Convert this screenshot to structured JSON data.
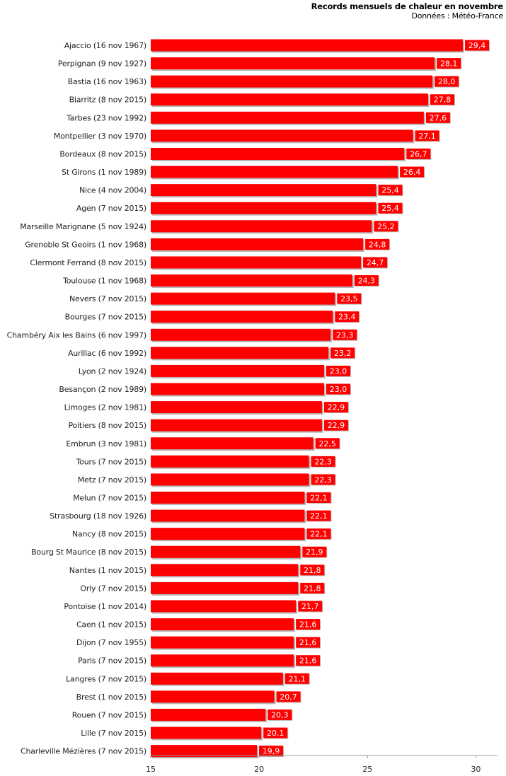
{
  "chart_data": {
    "type": "bar",
    "orientation": "horizontal",
    "title": "Records mensuels de chaleur en novembre",
    "subtitle": "Données : Météo-France",
    "xlabel": "",
    "ylabel": "",
    "xlim": [
      15,
      31
    ],
    "ticks": [
      15,
      20,
      25,
      30
    ],
    "tick_labels": [
      "15",
      "20",
      "25",
      "30"
    ],
    "bar_color": "#ff0000",
    "label_bg_color": "#ff0000",
    "grid": false,
    "categories": [
      "Ajaccio (16 nov 1967)",
      "Perpignan (9 nov 1927)",
      "Bastia (16 nov 1963)",
      "Biarritz (8 nov 2015)",
      "Tarbes (23 nov 1992)",
      "Montpellier (3 nov 1970)",
      "Bordeaux (8 nov 2015)",
      "St Girons (1 nov 1989)",
      "Nice (4 nov 2004)",
      "Agen (7 nov 2015)",
      "Marseille Marignane (5 nov 1924)",
      "Grenoble St Geoirs (1 nov 1968)",
      "Clermont Ferrand (8 nov 2015)",
      "Toulouse (1 nov 1968)",
      "Nevers (7 nov 2015)",
      "Bourges (7 nov 2015)",
      "Chambéry Aix les Bains (6 nov 1997)",
      "Aurillac (6 nov 1992)",
      "Lyon (2 nov 1924)",
      "Besançon (2 nov 1989)",
      "Limoges (2 nov 1981)",
      "Poitiers (8 nov 2015)",
      "Embrun (3 nov 1981)",
      "Tours (7 nov 2015)",
      "Metz (7 nov 2015)",
      "Melun (7 nov 2015)",
      "Strasbourg (18 nov 1926)",
      "Nancy (8 nov 2015)",
      "Bourg St Maurice (8 nov 2015)",
      "Nantes (1 nov 2015)",
      "Orly (7 nov 2015)",
      "Pontoise (1 nov 2014)",
      "Caen (1 nov 2015)",
      "Dijon (7 nov 1955)",
      "Paris (7 nov 2015)",
      "Langres (7 nov 2015)",
      "Brest (1 nov 2015)",
      "Rouen (7 nov 2015)",
      "Lille (7 nov 2015)",
      "Charleville Mézières (7 nov 2015)"
    ],
    "values": [
      29.4,
      28.1,
      28.0,
      27.8,
      27.6,
      27.1,
      26.7,
      26.4,
      25.4,
      25.4,
      25.2,
      24.8,
      24.7,
      24.3,
      23.5,
      23.4,
      23.3,
      23.2,
      23.0,
      23.0,
      22.9,
      22.9,
      22.5,
      22.3,
      22.3,
      22.1,
      22.1,
      22.1,
      21.9,
      21.8,
      21.8,
      21.7,
      21.6,
      21.6,
      21.6,
      21.1,
      20.7,
      20.3,
      20.1,
      19.9
    ],
    "value_labels": [
      "29,4",
      "28,1",
      "28,0",
      "27,8",
      "27,6",
      "27,1",
      "26,7",
      "26,4",
      "25,4",
      "25,4",
      "25,2",
      "24,8",
      "24,7",
      "24,3",
      "23,5",
      "23,4",
      "23,3",
      "23,2",
      "23,0",
      "23,0",
      "22,9",
      "22,9",
      "22,5",
      "22,3",
      "22,3",
      "22,1",
      "22,1",
      "22,1",
      "21,9",
      "21,8",
      "21,8",
      "21,7",
      "21,6",
      "21,6",
      "21,6",
      "21,1",
      "20,7",
      "20,3",
      "20,1",
      "19,9"
    ]
  }
}
